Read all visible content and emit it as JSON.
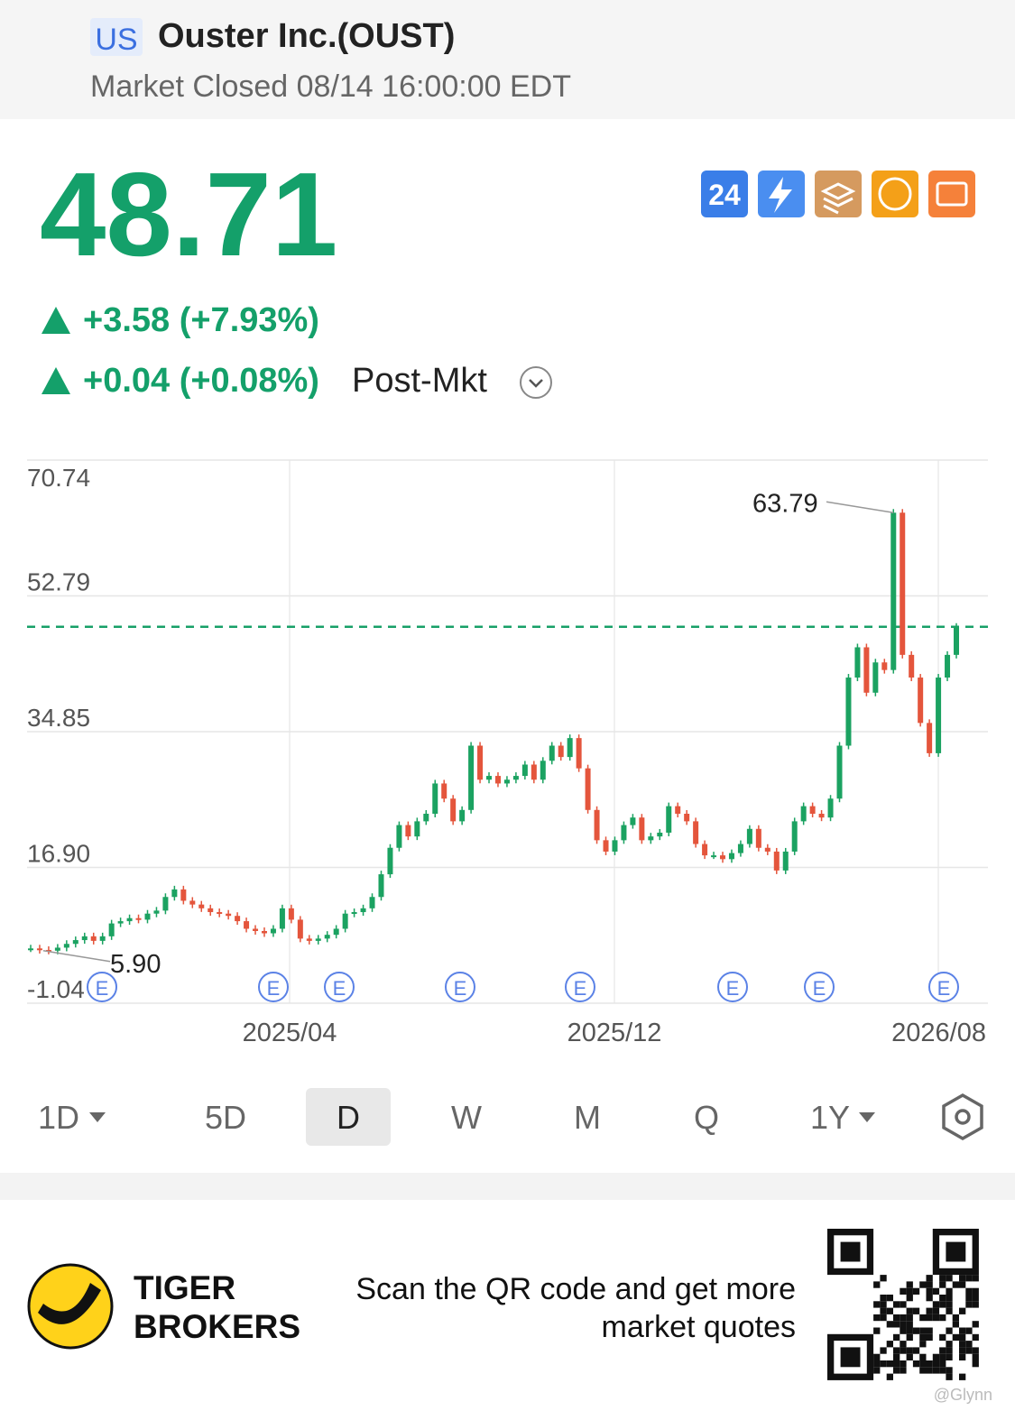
{
  "header": {
    "market": "US",
    "title": "Ouster Inc.(OUST)",
    "status": "Market Closed 08/14 16:00:00 EDT"
  },
  "quote": {
    "price": "48.71",
    "change": "+3.58 (+7.93%)",
    "post_change": "+0.04 (+0.08%)",
    "post_label": "Post-Mkt"
  },
  "badges": [
    "24"
  ],
  "chart_data": {
    "type": "candlestick",
    "values": [
      6.2,
      6.0,
      5.9,
      6.3,
      6.8,
      7.3,
      7.8,
      7.2,
      7.8,
      9.5,
      9.8,
      10.2,
      10.0,
      10.8,
      11.2,
      13.0,
      14.0,
      12.5,
      12.0,
      11.5,
      11.0,
      10.8,
      10.5,
      9.8,
      8.8,
      8.5,
      8.2,
      8.8,
      11.5,
      10.0,
      7.5,
      7.2,
      7.5,
      8.0,
      8.8,
      10.8,
      11.0,
      11.5,
      13.0,
      16.0,
      19.5,
      22.5,
      21.0,
      23.0,
      24.0,
      28.0,
      26.0,
      23.0,
      24.5,
      33.0,
      28.5,
      29.0,
      28.0,
      28.5,
      29.0,
      30.5,
      28.5,
      31.0,
      33.0,
      31.5,
      34.0,
      30.0,
      24.5,
      20.5,
      19.0,
      20.5,
      22.5,
      23.5,
      20.5,
      21.0,
      21.5,
      25.0,
      24.0,
      23.0,
      20.0,
      18.5,
      18.5,
      18.0,
      18.8,
      20.0,
      22.0,
      19.5,
      19.0,
      16.5,
      19.0,
      23.0,
      25.0,
      24.0,
      23.5,
      26.0,
      33.0,
      42.0,
      46.0,
      40.0,
      44.0,
      43.0,
      63.79,
      45.0,
      42.0,
      36.0,
      32.0,
      42.0,
      45.0,
      48.71
    ],
    "colors": {
      "up": "#1ba261",
      "down": "#e4553c"
    },
    "ylim": [
      -1.04,
      70.74
    ],
    "yticks": [
      70.74,
      52.79,
      34.85,
      {
        "value": 16.9,
        "label": "16.90"
      },
      -1.04
    ],
    "x_labels": [
      "2025/04",
      "2025/12",
      "2026/08"
    ],
    "high": 63.79,
    "low": {
      "value": 5.9,
      "label": "5.90"
    },
    "reference_line": 48.71,
    "reference_color": "#18a068",
    "earnings_marker": "E",
    "grid": true
  },
  "periods": [
    "1D",
    "5D",
    "D",
    "W",
    "M",
    "Q",
    "1Y"
  ],
  "selected_period": "D",
  "footer": {
    "brand": [
      "TIGER",
      "BROKERS"
    ],
    "cta": [
      "Scan the QR code and get more",
      "market quotes"
    ],
    "watermark": "@Glynn"
  }
}
